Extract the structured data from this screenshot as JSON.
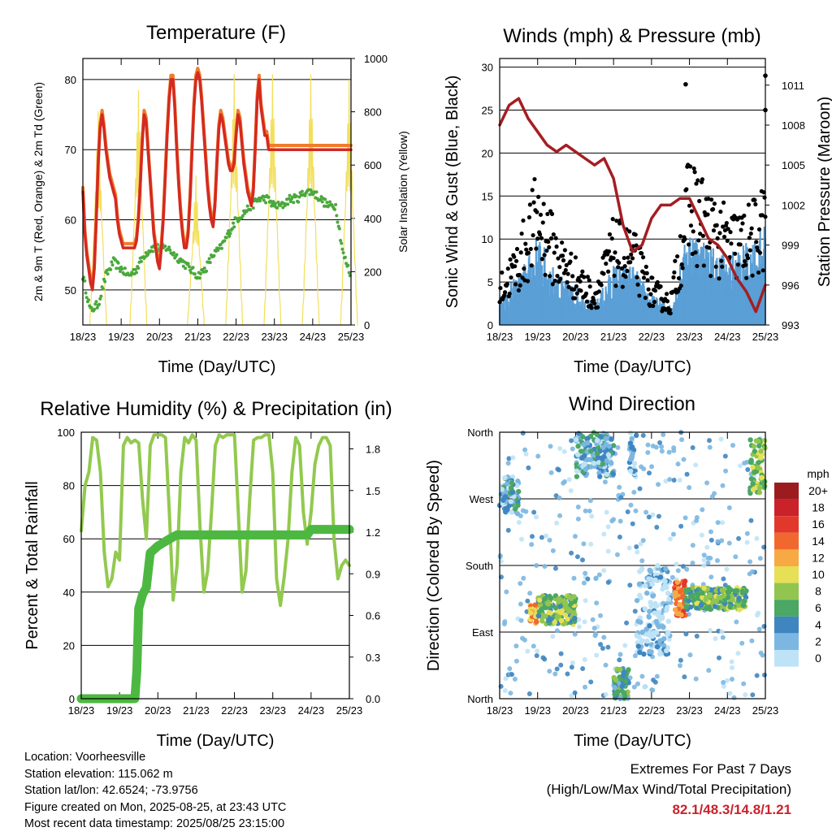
{
  "chart_data": [
    {
      "type": "line",
      "title": "Temperature (F)",
      "xlabel": "Time (Day/UTC)",
      "ylabel": "2m & 9m T (Red, Orange) & 2m Td (Green)",
      "y2label": "Solar Insolation (Yellow)",
      "categories": [
        "18/23",
        "19/23",
        "20/23",
        "21/23",
        "22/23",
        "23/23",
        "24/23",
        "25/23"
      ],
      "ylim": [
        45,
        83
      ],
      "yticks": [
        50,
        60,
        70,
        80
      ],
      "y2lim": [
        0,
        1000
      ],
      "y2ticks": [
        0,
        200,
        400,
        600,
        800,
        1000
      ],
      "grid": true,
      "series": [
        {
          "name": "2m T",
          "color": "#d42a20",
          "x": [
            0,
            0.05,
            0.1,
            0.15,
            0.2,
            0.25,
            0.3,
            0.35,
            0.4,
            0.45,
            0.5,
            0.55,
            0.6,
            0.65,
            0.7,
            0.75,
            0.8,
            0.85,
            0.9,
            0.95,
            1,
            1.05,
            1.1,
            1.15,
            1.2,
            1.25,
            1.3,
            1.35,
            1.4,
            1.45,
            1.5,
            1.55,
            1.6,
            1.65,
            1.7,
            1.75,
            1.8,
            1.85,
            1.9,
            1.95,
            2,
            2.05,
            2.1,
            2.15,
            2.2,
            2.25,
            2.3,
            2.35,
            2.4,
            2.45,
            2.5,
            2.55,
            2.6,
            2.65,
            2.7,
            2.75,
            2.8,
            2.85,
            2.9,
            2.95,
            3,
            3.05,
            3.1,
            3.15,
            3.2,
            3.25,
            3.3,
            3.35,
            3.4,
            3.45,
            3.5,
            3.55,
            3.6,
            3.65,
            3.7,
            3.75,
            3.8,
            3.85,
            3.9,
            3.95,
            4,
            4.05,
            4.1,
            4.15,
            4.2,
            4.25,
            4.3,
            4.35,
            4.4,
            4.45,
            4.5,
            4.55,
            4.6,
            4.65,
            4.7,
            4.75,
            4.8,
            4.85,
            4.9,
            4.95,
            5,
            5.05,
            5.1,
            5.15,
            5.2,
            5.25,
            5.3,
            5.35,
            5.4,
            5.45,
            5.5,
            5.55,
            5.6,
            5.65,
            5.7,
            5.75,
            5.8,
            5.85,
            5.9,
            5.95,
            6,
            6.05,
            6.1,
            6.15,
            6.2,
            6.25,
            6.3,
            6.35,
            6.4,
            6.45,
            6.5,
            6.55,
            6.6,
            6.65,
            6.7,
            6.75,
            6.8,
            6.85,
            6.9,
            6.95,
            7
          ],
          "y": [
            64,
            58,
            55,
            53,
            51,
            50,
            53,
            60,
            68,
            73,
            75,
            73,
            70,
            68,
            66,
            65,
            64,
            63,
            60,
            58,
            57,
            56,
            56,
            56,
            56,
            56,
            56,
            56,
            57,
            60,
            65,
            71,
            75,
            74,
            70,
            66,
            62,
            58,
            56,
            54,
            53,
            56,
            60,
            66,
            72,
            77,
            80,
            80,
            76,
            70,
            65,
            61,
            58,
            56,
            56,
            58,
            63,
            70,
            76,
            80,
            81,
            80,
            77,
            73,
            69,
            65,
            62,
            60,
            59,
            62,
            68,
            73,
            75,
            74,
            72,
            70,
            68,
            67,
            67,
            68,
            72,
            75,
            74,
            71,
            68,
            66,
            64,
            63,
            62,
            64,
            70,
            77,
            80,
            76,
            74,
            72,
            72,
            70,
            70,
            70,
            70,
            70,
            70,
            70,
            70,
            70,
            70,
            70,
            70,
            70,
            70,
            70,
            70,
            70,
            70,
            70,
            70,
            70,
            70,
            70,
            70,
            70,
            70,
            70,
            70,
            70,
            70,
            70,
            70,
            70,
            70,
            70,
            70,
            70,
            70,
            70,
            70,
            70,
            70,
            70,
            70
          ]
        },
        {
          "name": "Td",
          "color": "#4aa83c",
          "x": [
            0,
            0.2,
            0.4,
            0.6,
            0.8,
            1,
            1.2,
            1.4,
            1.6,
            1.8,
            2,
            2.2,
            2.4,
            2.6,
            2.8,
            3,
            3.2,
            3.4,
            3.6,
            3.8,
            4,
            4.2,
            4.4,
            4.6,
            4.8,
            5,
            5.2,
            5.4,
            5.6,
            5.8,
            6,
            6.2,
            6.4,
            6.6,
            6.8,
            7
          ],
          "y": [
            52,
            47,
            48,
            52,
            54,
            53,
            52,
            53,
            55,
            56,
            56,
            56,
            55,
            54,
            53,
            52,
            53,
            55,
            56,
            58,
            60,
            61,
            62,
            63,
            63,
            62,
            62,
            63,
            63,
            64,
            64,
            63,
            62,
            62,
            55,
            52
          ]
        }
      ],
      "insolation_series": {
        "name": "Solar Insolation",
        "color": "#f3df5a",
        "peaks": [
          0.4,
          1.45,
          2.95,
          3.95,
          4.95,
          5.95,
          6.95
        ],
        "peak_values": [
          800,
          880,
          560,
          940,
          940,
          940,
          920
        ]
      }
    },
    {
      "type": "scatter",
      "title": "Winds (mph) & Pressure (mb)",
      "xlabel": "Time (Day/UTC)",
      "ylabel": "Sonic Wind & Gust (Blue, Black)",
      "y2label": "Station Pressure (Maroon)",
      "categories": [
        "18/23",
        "19/23",
        "20/23",
        "21/23",
        "22/23",
        "23/23",
        "24/23",
        "25/23"
      ],
      "ylim": [
        0,
        31
      ],
      "yticks": [
        0,
        5,
        10,
        15,
        20,
        25,
        30
      ],
      "y2lim": [
        993,
        1013
      ],
      "y2ticks": [
        993,
        996,
        999,
        1002,
        1005,
        1008,
        1011
      ],
      "grid": true,
      "wind_envelope": {
        "x": [
          0,
          0.5,
          1,
          1.5,
          2,
          2.5,
          3,
          3.5,
          4,
          4.5,
          5,
          5.5,
          6,
          6.5,
          7
        ],
        "wind": [
          3,
          5,
          9,
          5,
          4,
          2,
          6,
          6,
          3,
          2,
          10,
          8,
          7,
          8,
          10
        ],
        "gust": [
          5,
          9,
          16,
          10,
          7,
          4,
          11,
          10,
          5,
          3,
          18,
          14,
          12,
          12,
          15
        ]
      },
      "pressure_series": {
        "name": "Station Pressure",
        "color": "#a41e22",
        "x": [
          0,
          0.25,
          0.5,
          0.75,
          1,
          1.25,
          1.5,
          1.75,
          2,
          2.25,
          2.5,
          2.75,
          3,
          3.25,
          3.5,
          3.75,
          4,
          4.25,
          4.5,
          4.75,
          5,
          5.25,
          5.5,
          5.75,
          6,
          6.25,
          6.5,
          6.75,
          7
        ],
        "y": [
          1008,
          1009.5,
          1010,
          1008.5,
          1007.5,
          1006.5,
          1006,
          1006.5,
          1006,
          1005.5,
          1005,
          1005.5,
          1004,
          1000.5,
          998.5,
          999,
          1001,
          1002,
          1002,
          1002.5,
          1002.5,
          1001,
          999.5,
          999,
          998,
          996.5,
          995.5,
          994,
          996
        ]
      },
      "gust_outliers": [
        {
          "x": 4.9,
          "y": 28
        },
        {
          "x": 7,
          "y": 29
        },
        {
          "x": 7,
          "y": 25
        }
      ]
    },
    {
      "type": "line",
      "title": "Relative Humidity (%) & Precipitation (in)",
      "xlabel": "Time (Day/UTC)",
      "ylabel": "Percent & Total Rainfall",
      "categories": [
        "18/23",
        "19/23",
        "20/23",
        "21/23",
        "22/23",
        "23/23",
        "24/23",
        "25/23"
      ],
      "ylim": [
        0,
        100
      ],
      "yticks": [
        0,
        20,
        40,
        60,
        80,
        100
      ],
      "y2lim": [
        0,
        1.92
      ],
      "y2ticks": [
        0.0,
        0.3,
        0.6,
        0.9,
        1.2,
        1.5,
        1.8
      ],
      "grid": true,
      "series": [
        {
          "name": "Relative Humidity",
          "color": "#92c94f",
          "x": [
            0,
            0.1,
            0.2,
            0.3,
            0.4,
            0.5,
            0.6,
            0.7,
            0.8,
            0.9,
            1,
            1.1,
            1.2,
            1.3,
            1.4,
            1.5,
            1.6,
            1.7,
            1.8,
            1.9,
            2,
            2.1,
            2.2,
            2.3,
            2.4,
            2.5,
            2.6,
            2.7,
            2.8,
            2.9,
            3,
            3.1,
            3.2,
            3.3,
            3.4,
            3.5,
            3.6,
            3.7,
            3.8,
            3.9,
            4,
            4.1,
            4.2,
            4.3,
            4.4,
            4.5,
            4.6,
            4.7,
            4.8,
            4.9,
            5,
            5.1,
            5.2,
            5.3,
            5.4,
            5.5,
            5.6,
            5.7,
            5.8,
            5.9,
            6,
            6.1,
            6.2,
            6.3,
            6.4,
            6.5,
            6.6,
            6.7,
            6.8,
            6.9,
            7
          ],
          "y": [
            63,
            80,
            85,
            98,
            97,
            85,
            55,
            42,
            45,
            55,
            52,
            95,
            98,
            96,
            97,
            96,
            75,
            60,
            95,
            99,
            99,
            99,
            98,
            70,
            37,
            50,
            85,
            98,
            96,
            99,
            97,
            65,
            40,
            48,
            70,
            95,
            99,
            98,
            99,
            99,
            99,
            70,
            40,
            48,
            75,
            97,
            98,
            98,
            99,
            99,
            85,
            45,
            35,
            46,
            60,
            85,
            98,
            95,
            70,
            58,
            70,
            88,
            95,
            98,
            98,
            95,
            60,
            45,
            50,
            52,
            50
          ]
        },
        {
          "name": "Total Rainfall",
          "color": "#4db841",
          "x": [
            0,
            1.3,
            1.4,
            1.45,
            1.5,
            1.6,
            1.7,
            1.8,
            2.0,
            2.3,
            2.5,
            3.0,
            4.0,
            5.0,
            5.9,
            6.0,
            6.5,
            7.0
          ],
          "y": [
            0,
            0,
            0,
            0.2,
            0.65,
            0.75,
            0.8,
            1.05,
            1.1,
            1.15,
            1.18,
            1.18,
            1.18,
            1.18,
            1.18,
            1.22,
            1.22,
            1.22
          ]
        }
      ]
    },
    {
      "type": "scatter",
      "title": "Wind Direction",
      "xlabel": "Time (Day/UTC)",
      "ylabel": "Direction (Colored By Speed)",
      "categories": [
        "18/23",
        "19/23",
        "20/23",
        "21/23",
        "22/23",
        "23/23",
        "24/23",
        "25/23"
      ],
      "ylim": [
        0,
        360
      ],
      "yticks": [
        "North",
        "East",
        "South",
        "West",
        "North"
      ],
      "grid": true,
      "colorbar_label": "mph",
      "colorbar": [
        {
          "label": "20+",
          "color": "#9c1b1f"
        },
        {
          "label": "18",
          "color": "#c9222a"
        },
        {
          "label": "16",
          "color": "#e2382c"
        },
        {
          "label": "14",
          "color": "#f1682f"
        },
        {
          "label": "12",
          "color": "#f7a944"
        },
        {
          "label": "10",
          "color": "#e7df55"
        },
        {
          "label": "8",
          "color": "#91c54f"
        },
        {
          "label": "6",
          "color": "#4aa764"
        },
        {
          "label": "4",
          "color": "#3f86c1"
        },
        {
          "label": "2",
          "color": "#7cb7e1"
        },
        {
          "label": "0",
          "color": "#bfe3f6"
        }
      ],
      "clusters": [
        {
          "x0": 0,
          "x1": 0.5,
          "dir0": 250,
          "dir1": 300,
          "speed": 3
        },
        {
          "x0": 0.8,
          "x1": 1.0,
          "dir0": 100,
          "dir1": 130,
          "speed": 12
        },
        {
          "x0": 1.0,
          "x1": 2.0,
          "dir0": 100,
          "dir1": 140,
          "speed": 7
        },
        {
          "x0": 2.0,
          "x1": 3.0,
          "dir0": 300,
          "dir1": 360,
          "speed": 3
        },
        {
          "x0": 3.0,
          "x1": 3.4,
          "dir0": 0,
          "dir1": 40,
          "speed": 5
        },
        {
          "x0": 3.4,
          "x1": 3.6,
          "dir0": 300,
          "dir1": 360,
          "speed": 2
        },
        {
          "x0": 3.6,
          "x1": 4.5,
          "dir0": 60,
          "dir1": 180,
          "speed": 1
        },
        {
          "x0": 4.6,
          "x1": 4.9,
          "dir0": 110,
          "dir1": 160,
          "speed": 14
        },
        {
          "x0": 4.9,
          "x1": 6.5,
          "dir0": 120,
          "dir1": 150,
          "speed": 7
        },
        {
          "x0": 6.6,
          "x1": 7.0,
          "dir0": 270,
          "dir1": 350,
          "speed": 8
        }
      ]
    }
  ],
  "footer": {
    "location": "Location: Voorheesville",
    "elevation": "Station elevation: 115.062 m",
    "latlon": "Station lat/lon: 42.6524; -73.9756",
    "created": "Figure created on Mon, 2025-08-25, at 23:43 UTC",
    "recent": "Most recent data timestamp: 2025/08/25 23:15:00"
  },
  "extremes": {
    "heading": "Extremes For Past 7 Days",
    "subheading": "(High/Low/Max Wind/Total Precipitation)",
    "values": "82.1/48.3/14.8/1.21"
  }
}
